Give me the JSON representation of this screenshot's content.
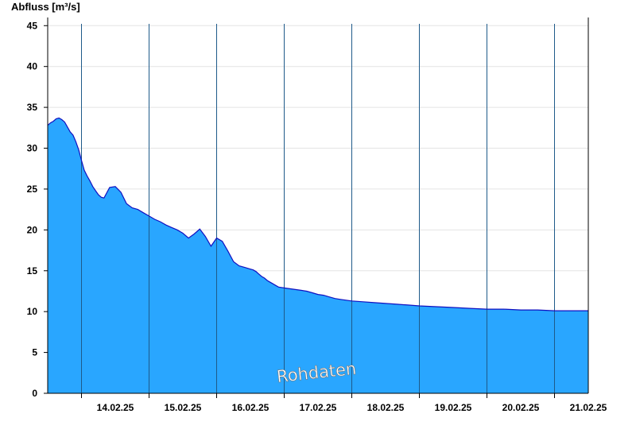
{
  "chart_data": {
    "type": "area",
    "title": "",
    "ylabel": "Abfluss [m³/s]",
    "xlabel": "",
    "ylim": [
      0,
      46
    ],
    "yticks": [
      0,
      5,
      10,
      15,
      20,
      25,
      30,
      35,
      40,
      45
    ],
    "xlim": [
      "13.02.25 12:00",
      "21.02.25 12:00"
    ],
    "xticks": [
      "14.02.25",
      "15.02.25",
      "16.02.25",
      "17.02.25",
      "18.02.25",
      "19.02.25",
      "20.02.25",
      "21.02.25"
    ],
    "grid": true,
    "watermark": "Rohdaten",
    "colors": {
      "fill": "#29a6ff",
      "line": "#1010c0",
      "grid": "#e4e4e4",
      "daylines": "#1e5a8a"
    },
    "series": [
      {
        "x": [
          "13.02.25 12:00",
          "13.02.25 13:00",
          "13.02.25 14:00",
          "13.02.25 15:00",
          "13.02.25 16:00",
          "13.02.25 17:00",
          "13.02.25 18:00",
          "13.02.25 19:00",
          "13.02.25 20:00",
          "13.02.25 21:00",
          "13.02.25 22:00",
          "13.02.25 23:00",
          "14.02.25 00:00",
          "14.02.25 01:00",
          "14.02.25 02:00",
          "14.02.25 03:00",
          "14.02.25 04:00",
          "14.02.25 05:00",
          "14.02.25 06:00",
          "14.02.25 07:00",
          "14.02.25 08:00",
          "14.02.25 10:00",
          "14.02.25 12:00",
          "14.02.25 14:00",
          "14.02.25 16:00",
          "14.02.25 18:00",
          "14.02.25 20:00",
          "14.02.25 22:00",
          "15.02.25 00:00",
          "15.02.25 02:00",
          "15.02.25 04:00",
          "15.02.25 06:00",
          "15.02.25 08:00",
          "15.02.25 10:00",
          "15.02.25 12:00",
          "15.02.25 14:00",
          "15.02.25 16:00",
          "15.02.25 18:00",
          "15.02.25 20:00",
          "15.02.25 22:00",
          "16.02.25 00:00",
          "16.02.25 02:00",
          "16.02.25 04:00",
          "16.02.25 06:00",
          "16.02.25 08:00",
          "16.02.25 10:00",
          "16.02.25 12:00",
          "16.02.25 13:00",
          "16.02.25 14:00",
          "16.02.25 15:00",
          "16.02.25 16:00",
          "16.02.25 17:00",
          "16.02.25 18:00",
          "16.02.25 19:00",
          "16.02.25 20:00",
          "16.02.25 21:00",
          "16.02.25 22:00",
          "17.02.25 00:00",
          "17.02.25 02:00",
          "17.02.25 04:00",
          "17.02.25 06:00",
          "17.02.25 08:00",
          "17.02.25 10:00",
          "17.02.25 12:00",
          "17.02.25 14:00",
          "17.02.25 16:00",
          "17.02.25 18:00",
          "17.02.25 20:00",
          "17.02.25 22:00",
          "18.02.25 00:00",
          "18.02.25 04:00",
          "18.02.25 08:00",
          "18.02.25 12:00",
          "18.02.25 16:00",
          "18.02.25 20:00",
          "19.02.25 00:00",
          "19.02.25 06:00",
          "19.02.25 12:00",
          "19.02.25 18:00",
          "20.02.25 00:00",
          "20.02.25 06:00",
          "20.02.25 12:00",
          "20.02.25 18:00",
          "21.02.25 00:00",
          "21.02.25 06:00",
          "21.02.25 12:00"
        ],
        "y": [
          32.8,
          33.1,
          33.3,
          33.6,
          33.7,
          33.5,
          33.2,
          32.6,
          32.0,
          31.6,
          30.8,
          29.8,
          28.5,
          27.3,
          26.6,
          26.0,
          25.3,
          24.8,
          24.3,
          24.0,
          23.9,
          25.2,
          25.3,
          24.6,
          23.2,
          22.7,
          22.5,
          22.1,
          21.7,
          21.3,
          21.0,
          20.6,
          20.3,
          20.0,
          19.6,
          19.0,
          19.5,
          20.1,
          19.2,
          18.0,
          19.0,
          18.6,
          17.4,
          16.1,
          15.6,
          15.4,
          15.2,
          15.1,
          14.9,
          14.6,
          14.3,
          14.1,
          13.8,
          13.6,
          13.4,
          13.2,
          13.0,
          12.9,
          12.8,
          12.7,
          12.6,
          12.5,
          12.3,
          12.1,
          12.0,
          11.8,
          11.6,
          11.5,
          11.4,
          11.3,
          11.2,
          11.1,
          11.0,
          10.9,
          10.8,
          10.7,
          10.6,
          10.5,
          10.4,
          10.3,
          10.3,
          10.2,
          10.2,
          10.1,
          10.1,
          10.1
        ]
      }
    ]
  }
}
